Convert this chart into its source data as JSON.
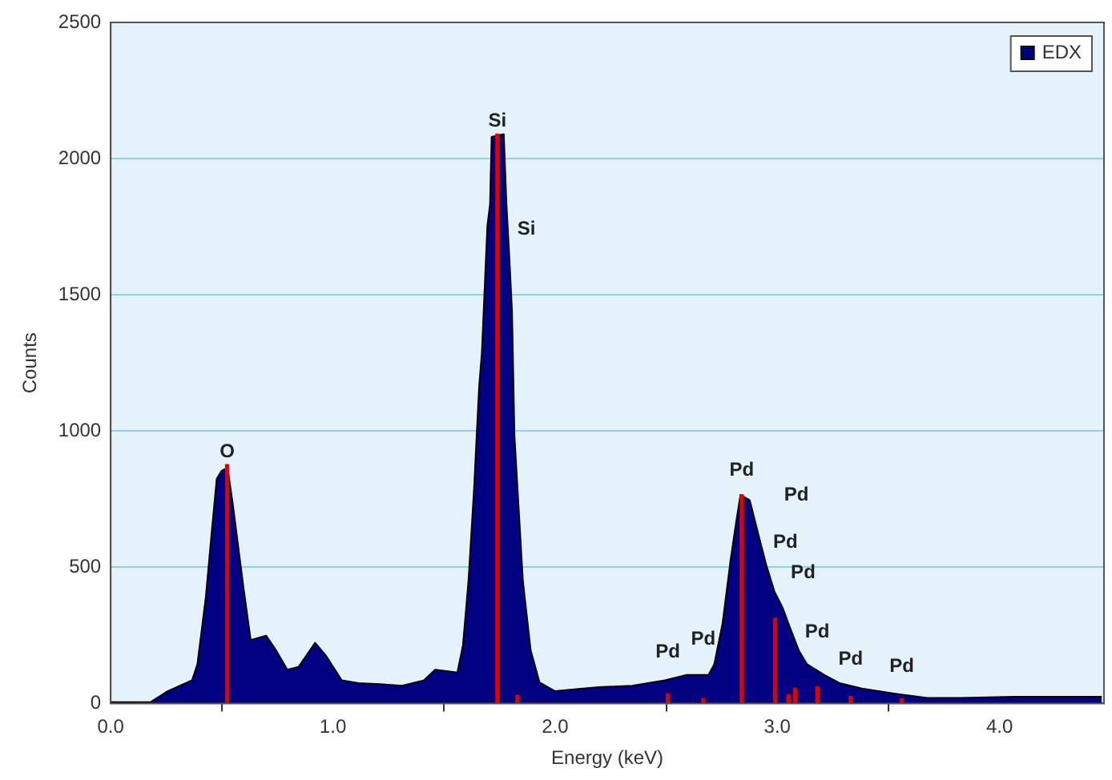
{
  "chart_data": {
    "type": "area",
    "xlabel": "Energy (keV)",
    "ylabel": "Counts",
    "xlim": [
      0,
      4.47
    ],
    "ylim": [
      0,
      2500
    ],
    "xticks": [
      {
        "value": 0,
        "label": "0.0"
      },
      {
        "value": 1,
        "label": "1.0"
      },
      {
        "value": 2,
        "label": "2.0"
      },
      {
        "value": 3,
        "label": "3.0"
      },
      {
        "value": 4,
        "label": "4.0"
      }
    ],
    "yticks": [
      0,
      500,
      1000,
      1500,
      2000,
      2500
    ],
    "grid": "y",
    "legend": "top right",
    "marker": "none",
    "series": [
      {
        "name": "EDX",
        "color": "#000080",
        "x": [
          0,
          0.18,
          0.256,
          0.366,
          0.39,
          0.428,
          0.452,
          0.477,
          0.5,
          0.526,
          0.55,
          0.575,
          0.6,
          0.63,
          0.7,
          0.745,
          0.795,
          0.845,
          0.92,
          0.97,
          1.04,
          1.115,
          1.21,
          1.31,
          1.41,
          1.46,
          1.56,
          1.585,
          1.61,
          1.635,
          1.658,
          1.67,
          1.695,
          1.707,
          1.714,
          1.769,
          1.781,
          1.793,
          1.806,
          1.817,
          1.855,
          1.89,
          1.93,
          2.0,
          2.125,
          2.2,
          2.347,
          2.494,
          2.593,
          2.69,
          2.716,
          2.753,
          2.79,
          2.815,
          2.834,
          2.876,
          2.9,
          2.925,
          2.95,
          2.987,
          3.024,
          3.06,
          3.097,
          3.134,
          3.21,
          3.28,
          3.38,
          3.53,
          3.675,
          3.82,
          4.07,
          4.46
        ],
        "values": [
          5,
          5,
          45,
          85,
          144,
          391,
          608,
          825,
          855,
          865,
          728,
          569,
          411,
          233,
          249,
          194,
          124,
          134,
          223,
          174,
          85,
          75,
          71,
          65,
          85,
          124,
          114,
          213,
          450,
          788,
          1166,
          1285,
          1754,
          1833,
          2080,
          2090,
          1833,
          1655,
          1440,
          983,
          450,
          195,
          77,
          45,
          55,
          60,
          65,
          85,
          105,
          105,
          144,
          292,
          529,
          668,
          766,
          746,
          668,
          588,
          509,
          411,
          351,
          272,
          194,
          144,
          105,
          75,
          55,
          36,
          20,
          20,
          25,
          25
        ]
      },
      {
        "type": "bar",
        "color": "#e00000",
        "x": [
          0.524,
          1.74,
          1.83,
          2.507,
          2.667,
          2.84,
          2.99,
          3.05,
          3.08,
          3.18,
          3.33,
          3.56
        ],
        "values": [
          877,
          2090,
          30,
          35,
          18,
          766,
          313,
          32,
          56,
          62,
          26,
          17
        ]
      }
    ],
    "annotations": [
      {
        "text": "O",
        "x": 0.524,
        "y": 877
      },
      {
        "text": "Si",
        "x": 1.74,
        "y": 2090
      },
      "Si",
      {
        "text": "Pd",
        "x": 2.507,
        "y": 35
      },
      {
        "text": "Pd",
        "x": 2.667,
        "y": 18
      },
      {
        "text": "Pd",
        "x": 2.84,
        "y": 766
      },
      "Pd",
      "Pd",
      "Pd",
      {
        "text": "Pd",
        "x": 3.18,
        "y": 62
      },
      {
        "text": "Pd",
        "x": 3.33,
        "y": 26
      },
      {
        "text": "Pd",
        "x": 3.56,
        "y": 17
      }
    ]
  }
}
